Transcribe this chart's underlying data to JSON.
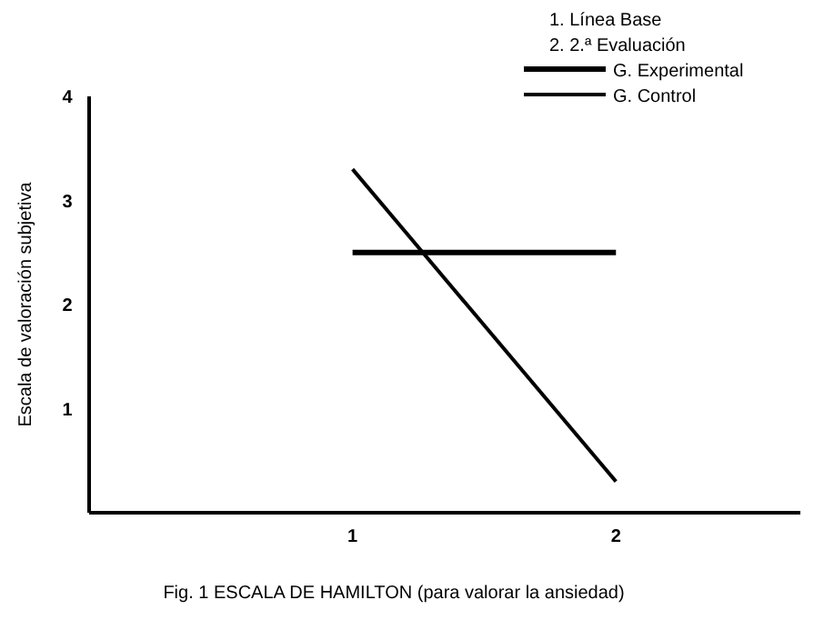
{
  "chart_data": {
    "type": "line",
    "title": "Fig. 1    ESCALA DE HAMILTON (para valorar la ansiedad)",
    "ylabel": "Escala de valoración subjetiva",
    "x": [
      1,
      2
    ],
    "xlim": [
      0,
      2.7
    ],
    "xticks": [
      1,
      2
    ],
    "ylim": [
      0,
      4
    ],
    "yticks": [
      1,
      2,
      3,
      4
    ],
    "series": [
      {
        "name": "G. Experimental",
        "color": "#000000",
        "values": [
          2.5,
          2.5
        ]
      },
      {
        "name": "G. Control",
        "color": "#000000",
        "values": [
          3.3,
          0.3
        ]
      }
    ],
    "annotations": [
      "1.   Línea Base",
      "2.   2.ª Evaluación"
    ],
    "legend": "top right",
    "grid": false,
    "marker": "none",
    "line_style": "solid"
  }
}
